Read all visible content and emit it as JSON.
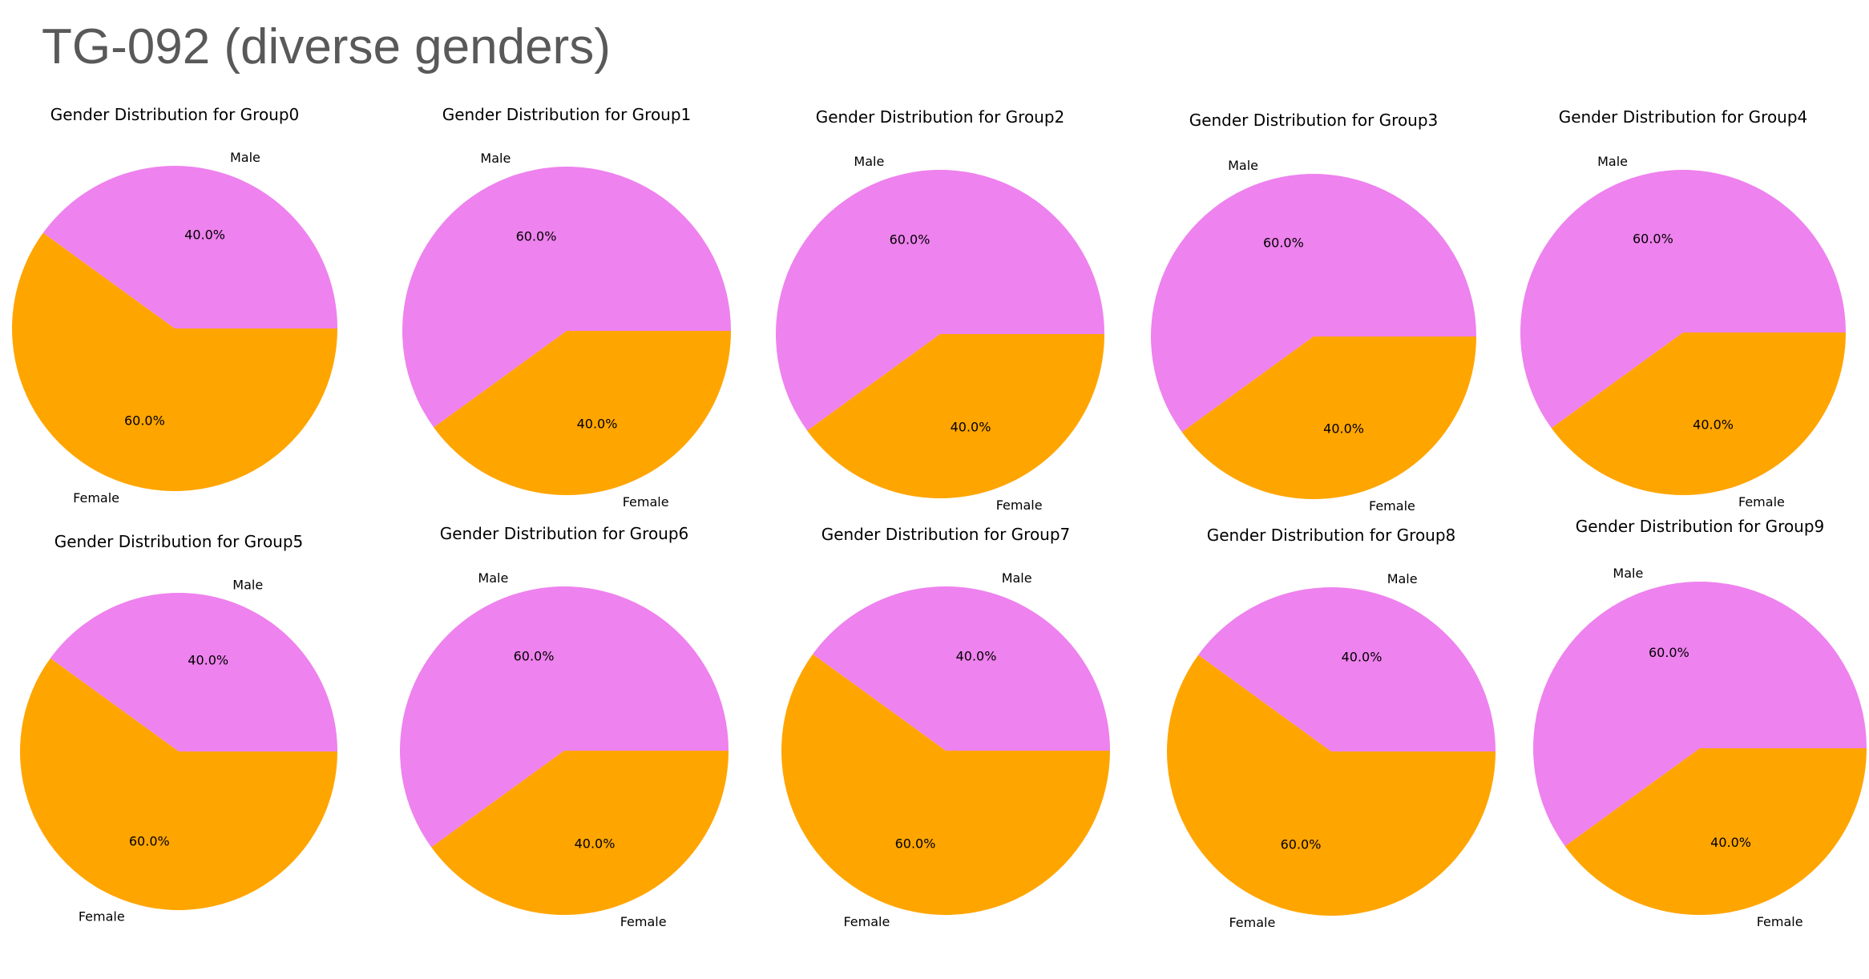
{
  "page": {
    "title": "TG-092 (diverse genders)"
  },
  "colors": {
    "Male": "#EE82EE",
    "Female": "#FFA500"
  },
  "chart_data": [
    {
      "type": "pie",
      "title": "Gender Distribution for Group0",
      "labels": [
        "Male",
        "Female"
      ],
      "values": [
        40.0,
        60.0
      ],
      "autopct": [
        "40.0%",
        "60.0%"
      ]
    },
    {
      "type": "pie",
      "title": "Gender Distribution for Group1",
      "labels": [
        "Male",
        "Female"
      ],
      "values": [
        60.0,
        40.0
      ],
      "autopct": [
        "60.0%",
        "40.0%"
      ]
    },
    {
      "type": "pie",
      "title": "Gender Distribution for Group2",
      "labels": [
        "Male",
        "Female"
      ],
      "values": [
        60.0,
        40.0
      ],
      "autopct": [
        "60.0%",
        "40.0%"
      ]
    },
    {
      "type": "pie",
      "title": "Gender Distribution for Group3",
      "labels": [
        "Male",
        "Female"
      ],
      "values": [
        60.0,
        40.0
      ],
      "autopct": [
        "60.0%",
        "40.0%"
      ]
    },
    {
      "type": "pie",
      "title": "Gender Distribution for Group4",
      "labels": [
        "Male",
        "Female"
      ],
      "values": [
        60.0,
        40.0
      ],
      "autopct": [
        "60.0%",
        "40.0%"
      ]
    },
    {
      "type": "pie",
      "title": "Gender Distribution for Group5",
      "labels": [
        "Male",
        "Female"
      ],
      "values": [
        40.0,
        60.0
      ],
      "autopct": [
        "40.0%",
        "60.0%"
      ]
    },
    {
      "type": "pie",
      "title": "Gender Distribution for Group6",
      "labels": [
        "Male",
        "Female"
      ],
      "values": [
        60.0,
        40.0
      ],
      "autopct": [
        "60.0%",
        "40.0%"
      ]
    },
    {
      "type": "pie",
      "title": "Gender Distribution for Group7",
      "labels": [
        "Male",
        "Female"
      ],
      "values": [
        40.0,
        60.0
      ],
      "autopct": [
        "40.0%",
        "60.0%"
      ]
    },
    {
      "type": "pie",
      "title": "Gender Distribution for Group8",
      "labels": [
        "Male",
        "Female"
      ],
      "values": [
        40.0,
        60.0
      ],
      "autopct": [
        "40.0%",
        "60.0%"
      ]
    },
    {
      "type": "pie",
      "title": "Gender Distribution for Group9",
      "labels": [
        "Male",
        "Female"
      ],
      "values": [
        60.0,
        40.0
      ],
      "autopct": [
        "60.0%",
        "40.0%"
      ]
    }
  ]
}
